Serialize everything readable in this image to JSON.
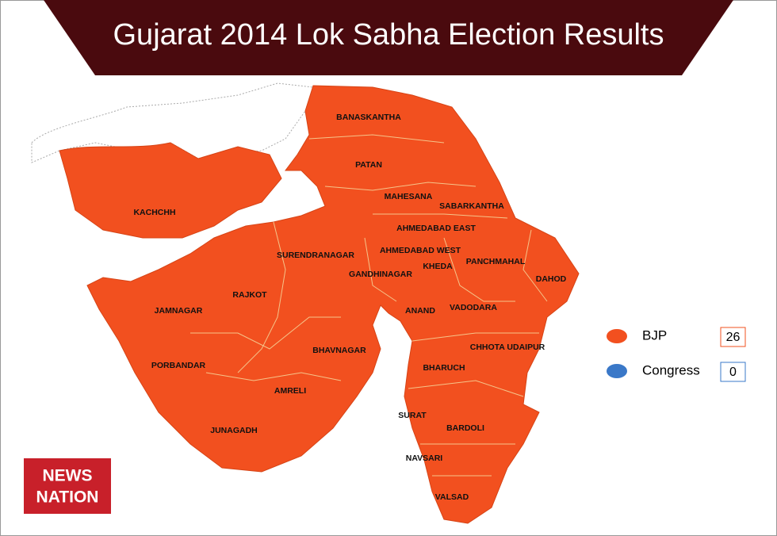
{
  "title": "Gujarat 2014 Lok Sabha Election Results",
  "regions": [
    "BANASKANTHA",
    "PATAN",
    "MAHESANA",
    "SABARKANTHA",
    "AHMEDABAD EAST",
    "AHMEDABAD WEST",
    "SURENDRANAGAR",
    "GANDHINAGAR",
    "KHEDA",
    "PANCHMAHAL",
    "DAHOD",
    "KACHCHH",
    "JAMNAGAR",
    "RAJKOT",
    "ANAND",
    "VADODARA",
    "CHHOTA UDAIPUR",
    "BHAVNAGAR",
    "PORBANDAR",
    "BHARUCH",
    "AMRELI",
    "SURAT",
    "BARDOLI",
    "JUNAGADH",
    "NAVSARI",
    "VALSAD"
  ],
  "legend": [
    {
      "name": "BJP",
      "color": "#f2501f",
      "seats": "26"
    },
    {
      "name": "Congress",
      "color": "#3a78c8",
      "seats": "0"
    }
  ],
  "logo": {
    "line1": "NEWS",
    "line2": "NATION"
  }
}
